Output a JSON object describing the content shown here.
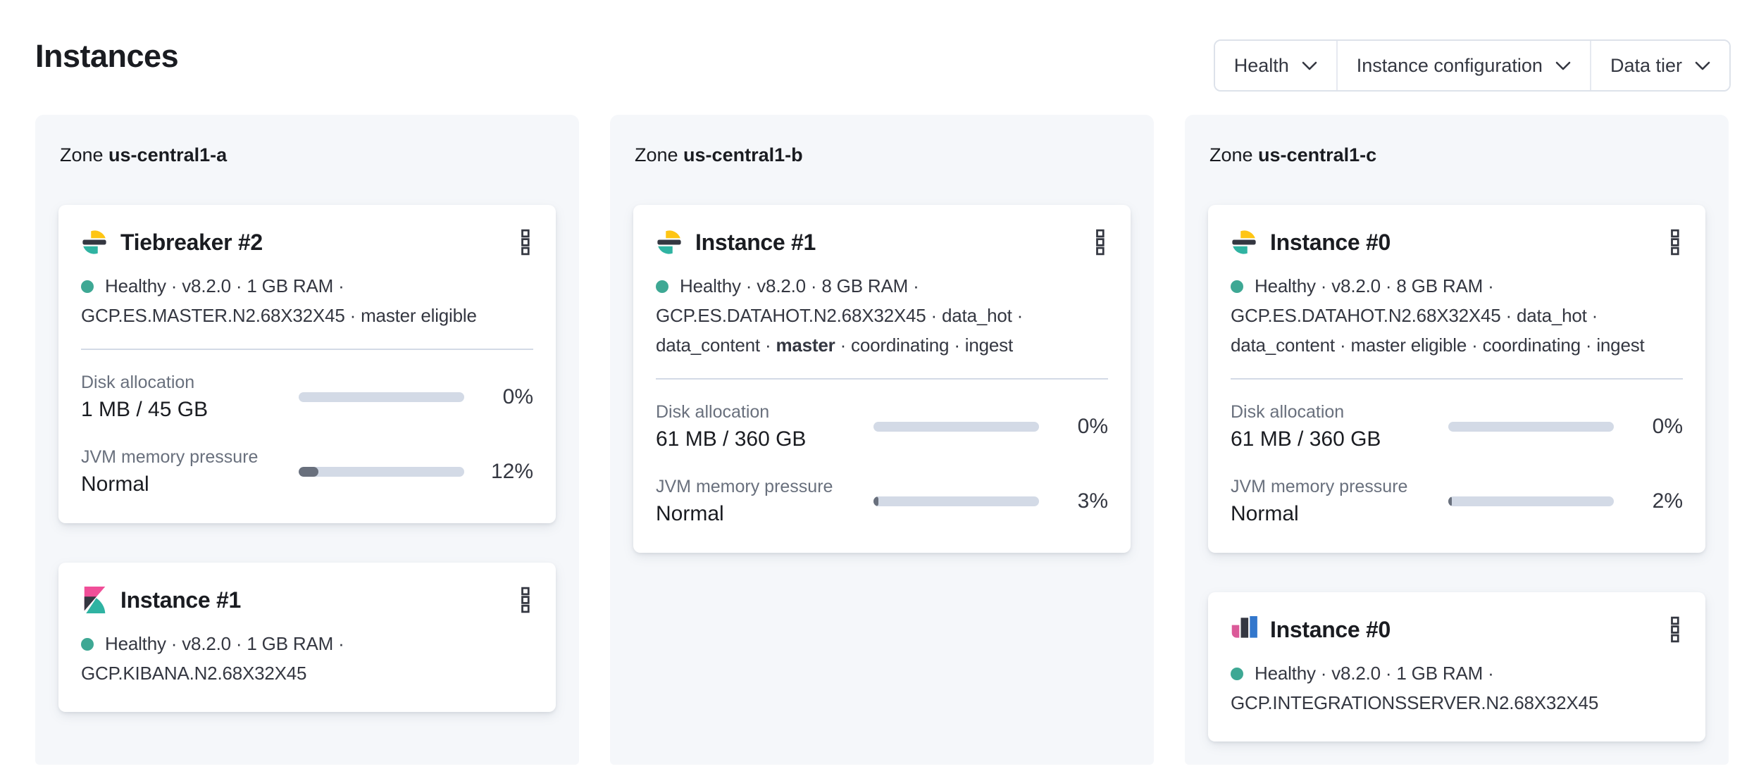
{
  "page": {
    "title": "Instances"
  },
  "filters": [
    {
      "label": "Health"
    },
    {
      "label": "Instance configuration"
    },
    {
      "label": "Data tier"
    }
  ],
  "colors": {
    "logo_yellow": "#fec514",
    "logo_dark": "#343741",
    "accent_teal": "#2fb3a2",
    "health_dot": "#3ea894",
    "kibana_pink": "#f04e98",
    "integrations_pink": "#db5a99",
    "integrations_blue": "#3377cc",
    "bar_bg": "#d3dae6",
    "bar_fill": "#69707d",
    "panel_bg": "#f5f7fa"
  },
  "zones": [
    {
      "zone_label": "Zone",
      "name": "us-central1-a",
      "cards": [
        {
          "logo": "elasticsearch",
          "title": "Tiebreaker #2",
          "health": "Healthy",
          "status_lines": [
            [
              "Healthy · v8.2.0 · 1 GB RAM ·"
            ],
            [
              "GCP.ES.MASTER.N2.68X32X45 · master eligible"
            ]
          ],
          "metrics": [
            {
              "name": "disk-allocation",
              "label": "Disk allocation",
              "value": "1 MB / 45 GB",
              "percent": "0%",
              "fill_pct": 0
            },
            {
              "name": "jvm-memory-pressure",
              "label": "JVM memory pressure",
              "value": "Normal",
              "percent": "12%",
              "fill_pct": 12
            }
          ]
        },
        {
          "logo": "kibana",
          "title": "Instance #1",
          "health": "Healthy",
          "status_lines": [
            [
              "Healthy · v8.2.0 · 1 GB RAM ·"
            ],
            [
              "GCP.KIBANA.N2.68X32X45"
            ]
          ],
          "metrics": []
        }
      ]
    },
    {
      "zone_label": "Zone",
      "name": "us-central1-b",
      "cards": [
        {
          "logo": "elasticsearch",
          "title": "Instance #1",
          "health": "Healthy",
          "status_lines": [
            [
              "Healthy · v8.2.0 · 8 GB RAM ·"
            ],
            [
              "GCP.ES.DATAHOT.N2.68X32X45 · data_hot ·"
            ],
            [
              "data_content · ",
              {
                "b": "master"
              },
              " · coordinating · ingest"
            ]
          ],
          "metrics": [
            {
              "name": "disk-allocation",
              "label": "Disk allocation",
              "value": "61 MB / 360 GB",
              "percent": "0%",
              "fill_pct": 0
            },
            {
              "name": "jvm-memory-pressure",
              "label": "JVM memory pressure",
              "value": "Normal",
              "percent": "3%",
              "fill_pct": 3
            }
          ]
        }
      ]
    },
    {
      "zone_label": "Zone",
      "name": "us-central1-c",
      "cards": [
        {
          "logo": "elasticsearch",
          "title": "Instance #0",
          "health": "Healthy",
          "status_lines": [
            [
              "Healthy · v8.2.0 · 8 GB RAM ·"
            ],
            [
              "GCP.ES.DATAHOT.N2.68X32X45 · data_hot ·"
            ],
            [
              "data_content · master eligible · coordinating · ingest"
            ]
          ],
          "metrics": [
            {
              "name": "disk-allocation",
              "label": "Disk allocation",
              "value": "61 MB / 360 GB",
              "percent": "0%",
              "fill_pct": 0
            },
            {
              "name": "jvm-memory-pressure",
              "label": "JVM memory pressure",
              "value": "Normal",
              "percent": "2%",
              "fill_pct": 2
            }
          ]
        },
        {
          "logo": "integrations-server",
          "title": "Instance #0",
          "health": "Healthy",
          "status_lines": [
            [
              "Healthy · v8.2.0 · 1 GB RAM ·"
            ],
            [
              "GCP.INTEGRATIONSSERVER.N2.68X32X45"
            ]
          ],
          "metrics": []
        }
      ]
    }
  ]
}
